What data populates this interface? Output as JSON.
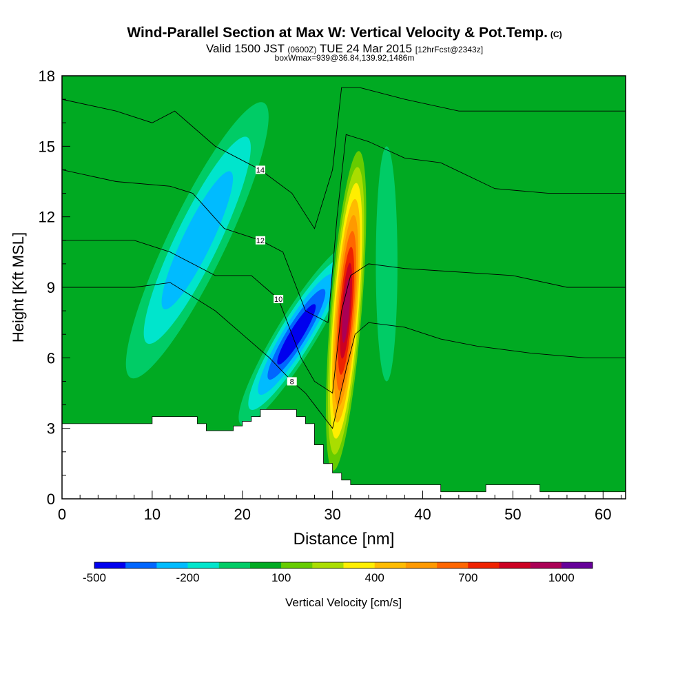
{
  "header": {
    "title": "Wind-Parallel Section at Max W: Vertical Velocity & Pot.Temp.",
    "title_mark": "(C)",
    "valid_prefix": "Valid 1500 JST",
    "valid_utc": "(0600Z)",
    "valid_date": "TUE 24 Mar 2015",
    "forecast": "[12hrFcst@2343z]",
    "box_info": "boxWmax=939@36.84,139.92,1486m"
  },
  "chart_data": {
    "type": "heatmap",
    "xlabel": "Distance [nm]",
    "ylabel": "Height [Kft MSL]",
    "xlim": [
      0,
      62.5
    ],
    "ylim": [
      0,
      18
    ],
    "x_ticks": [
      0,
      10,
      20,
      30,
      40,
      50,
      60
    ],
    "y_ticks": [
      0,
      3,
      6,
      9,
      12,
      15,
      18
    ],
    "colorbar": {
      "label": "Vertical Velocity [cm/s]",
      "levels": [
        -500,
        -400,
        -300,
        -200,
        -100,
        0,
        100,
        200,
        300,
        400,
        500,
        600,
        700,
        800,
        900,
        1000,
        1100
      ],
      "tick_labels": [
        -500,
        -200,
        100,
        400,
        700,
        1000
      ],
      "colors": [
        "#0000ee",
        "#0066ff",
        "#00bbff",
        "#00e5cc",
        "#00cc66",
        "#00aa22",
        "#66cc00",
        "#aadd00",
        "#ffee00",
        "#ffbb00",
        "#ff9900",
        "#ff6600",
        "#ee2200",
        "#cc0022",
        "#aa0055",
        "#660099"
      ]
    },
    "background_level": 0,
    "features": [
      {
        "name": "downdraft-west",
        "x": 15,
        "y": 11,
        "value": -250
      },
      {
        "name": "downdraft-central",
        "x": 26,
        "y": 7,
        "value": -500
      },
      {
        "name": "updraft-main",
        "x": 31.5,
        "y": 8,
        "value": 939
      },
      {
        "name": "weak-sink-east",
        "x": 36,
        "y": 10,
        "value": -100
      },
      {
        "name": "weak-lift-east",
        "x": 45,
        "y": 9,
        "value": 50
      }
    ],
    "terrain_kft": [
      [
        0,
        3.2
      ],
      [
        10,
        3.2
      ],
      [
        10,
        3.5
      ],
      [
        15,
        3.5
      ],
      [
        15,
        3.2
      ],
      [
        16,
        3.2
      ],
      [
        16,
        2.9
      ],
      [
        19,
        2.9
      ],
      [
        19,
        3.1
      ],
      [
        20,
        3.1
      ],
      [
        20,
        3.3
      ],
      [
        21,
        3.3
      ],
      [
        21,
        3.5
      ],
      [
        22,
        3.5
      ],
      [
        22,
        3.8
      ],
      [
        26,
        3.8
      ],
      [
        26,
        3.5
      ],
      [
        27,
        3.5
      ],
      [
        27,
        3.2
      ],
      [
        28,
        3.2
      ],
      [
        28,
        2.3
      ],
      [
        29,
        2.3
      ],
      [
        29,
        1.5
      ],
      [
        30,
        1.5
      ],
      [
        30,
        1.1
      ],
      [
        31,
        1.1
      ],
      [
        31,
        0.8
      ],
      [
        32,
        0.8
      ],
      [
        32,
        0.6
      ],
      [
        42,
        0.6
      ],
      [
        42,
        0.3
      ],
      [
        47,
        0.3
      ],
      [
        47,
        0.6
      ],
      [
        53,
        0.6
      ],
      [
        53,
        0.3
      ],
      [
        62.5,
        0.3
      ]
    ],
    "theta_contours": [
      {
        "label": "8",
        "points": [
          [
            0,
            9.0
          ],
          [
            8,
            9.0
          ],
          [
            12,
            9.2
          ],
          [
            17,
            8.0
          ],
          [
            20,
            7.0
          ],
          [
            23,
            6.0
          ],
          [
            25.5,
            5.0
          ],
          [
            27,
            4.5
          ],
          [
            28,
            4.0
          ],
          [
            30,
            3.0
          ],
          [
            31.5,
            5.5
          ],
          [
            32.5,
            7.0
          ],
          [
            34,
            7.5
          ],
          [
            38,
            7.3
          ],
          [
            42,
            6.8
          ],
          [
            46,
            6.5
          ],
          [
            52,
            6.2
          ],
          [
            58,
            6.0
          ],
          [
            62.5,
            6.0
          ]
        ]
      },
      {
        "label": "10",
        "points": [
          [
            0,
            11.0
          ],
          [
            8,
            11.0
          ],
          [
            12,
            10.5
          ],
          [
            17,
            9.5
          ],
          [
            21,
            9.5
          ],
          [
            24,
            8.5
          ],
          [
            26.5,
            6.0
          ],
          [
            28,
            5.0
          ],
          [
            30,
            4.5
          ],
          [
            31,
            8.0
          ],
          [
            32,
            9.5
          ],
          [
            34,
            10.0
          ],
          [
            38,
            9.8
          ],
          [
            42,
            9.7
          ],
          [
            50,
            9.5
          ],
          [
            56,
            9.0
          ],
          [
            62.5,
            9.0
          ]
        ]
      },
      {
        "label": "12",
        "points": [
          [
            0,
            14.0
          ],
          [
            6,
            13.5
          ],
          [
            12,
            13.3
          ],
          [
            14.5,
            13.0
          ],
          [
            18,
            11.5
          ],
          [
            22,
            11.0
          ],
          [
            24.5,
            10.5
          ],
          [
            27,
            8.0
          ],
          [
            29.5,
            7.5
          ],
          [
            30.5,
            12.0
          ],
          [
            31.5,
            15.5
          ],
          [
            34,
            15.2
          ],
          [
            38,
            14.5
          ],
          [
            42,
            14.3
          ],
          [
            48,
            13.2
          ],
          [
            54,
            13.0
          ],
          [
            62.5,
            13.0
          ]
        ]
      },
      {
        "label": "14",
        "points": [
          [
            0,
            17.0
          ],
          [
            6,
            16.5
          ],
          [
            10,
            16.0
          ],
          [
            12.5,
            16.5
          ],
          [
            17,
            15.0
          ],
          [
            22,
            14.0
          ],
          [
            25.5,
            13.0
          ],
          [
            28,
            11.5
          ],
          [
            30,
            14.0
          ],
          [
            31,
            17.5
          ],
          [
            33,
            17.5
          ],
          [
            38,
            17.0
          ],
          [
            44,
            16.5
          ],
          [
            50,
            16.5
          ],
          [
            56,
            16.5
          ],
          [
            62.5,
            16.5
          ]
        ]
      }
    ]
  }
}
